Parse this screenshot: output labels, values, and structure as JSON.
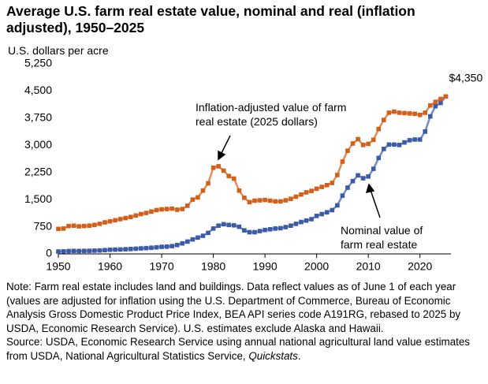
{
  "chart_data": {
    "type": "line",
    "title": "Average U.S. farm real estate value, nominal and real (inflation adjusted), 1950–2025",
    "y_label": "U.S. dollars per acre",
    "x": [
      1950,
      1951,
      1952,
      1953,
      1954,
      1955,
      1956,
      1957,
      1958,
      1959,
      1960,
      1961,
      1962,
      1963,
      1964,
      1965,
      1966,
      1967,
      1968,
      1969,
      1970,
      1971,
      1972,
      1973,
      1974,
      1975,
      1976,
      1977,
      1978,
      1979,
      1980,
      1981,
      1982,
      1983,
      1984,
      1985,
      1986,
      1987,
      1988,
      1989,
      1990,
      1991,
      1992,
      1993,
      1994,
      1995,
      1996,
      1997,
      1998,
      1999,
      2000,
      2001,
      2002,
      2003,
      2004,
      2005,
      2006,
      2007,
      2008,
      2009,
      2010,
      2011,
      2012,
      2013,
      2014,
      2015,
      2016,
      2017,
      2018,
      2019,
      2020,
      2021,
      2022,
      2023,
      2024,
      2025
    ],
    "series": [
      {
        "name": "Nominal value of farm real estate",
        "color": "#3b5ba8",
        "values": [
          65,
          70,
          78,
          82,
          80,
          82,
          85,
          90,
          95,
          105,
          115,
          118,
          122,
          128,
          135,
          143,
          152,
          160,
          170,
          180,
          195,
          200,
          215,
          245,
          290,
          340,
          400,
          450,
          500,
          580,
          700,
          780,
          820,
          800,
          790,
          750,
          650,
          600,
          600,
          630,
          660,
          680,
          700,
          710,
          740,
          780,
          830,
          880,
          920,
          960,
          1050,
          1100,
          1150,
          1210,
          1340,
          1610,
          1830,
          2010,
          2170,
          2090,
          2140,
          2350,
          2650,
          2900,
          3020,
          3020,
          3010,
          3080,
          3140,
          3160,
          3160,
          3380,
          3800,
          4080,
          4170,
          4350
        ],
        "value_labels": [
          null,
          null,
          null,
          null,
          null,
          null,
          null,
          null,
          null,
          null,
          null,
          null,
          null,
          null,
          null,
          null,
          null,
          null,
          null,
          null,
          null,
          null,
          null,
          null,
          null,
          null,
          null,
          null,
          null,
          null,
          null,
          null,
          null,
          null,
          null,
          null,
          null,
          null,
          null,
          null,
          null,
          null,
          null,
          null,
          null,
          null,
          null,
          null,
          null,
          null,
          null,
          null,
          null,
          null,
          null,
          null,
          null,
          null,
          null,
          null,
          null,
          null,
          null,
          null,
          null,
          null,
          null,
          null,
          null,
          null,
          null,
          null,
          null,
          null,
          null,
          "$4,350"
        ]
      },
      {
        "name": "Inflation-adjusted value of farm real estate (2025 dollars)",
        "color": "#d2601a",
        "values": [
          690,
          700,
          770,
          780,
          760,
          770,
          780,
          800,
          830,
          870,
          900,
          930,
          960,
          990,
          1020,
          1060,
          1100,
          1130,
          1170,
          1210,
          1230,
          1240,
          1250,
          1220,
          1240,
          1330,
          1500,
          1560,
          1750,
          1950,
          2380,
          2420,
          2300,
          2150,
          2080,
          1750,
          1550,
          1430,
          1470,
          1480,
          1490,
          1470,
          1450,
          1450,
          1480,
          1520,
          1580,
          1640,
          1700,
          1740,
          1800,
          1850,
          1900,
          1960,
          2180,
          2550,
          2850,
          3050,
          3170,
          3010,
          3040,
          3150,
          3450,
          3700,
          3900,
          3930,
          3900,
          3890,
          3880,
          3870,
          3840,
          3900,
          4100,
          4200,
          4280,
          4350
        ]
      }
    ],
    "xlim": [
      1950,
      2026
    ],
    "xticks": [
      1950,
      1960,
      1970,
      1980,
      1990,
      2000,
      2010,
      2020
    ],
    "ylim": [
      0,
      5250
    ],
    "yticks": [
      0,
      750,
      {
        "value": 1500,
        "label": "1,500"
      },
      {
        "value": 2250,
        "label": "2,250"
      },
      {
        "value": 3000,
        "label": "3,000"
      },
      {
        "value": 3750,
        "label": "3,750"
      },
      {
        "value": 4500,
        "label": "4,500"
      },
      {
        "value": 5250,
        "label": "5,250"
      }
    ],
    "grid": false,
    "note": "Note: Farm real estate includes land and buildings. Data reflect values as of June 1 of each year (values are adjusted for inflation using the U.S. Department of Commerce, Bureau of Economic Analysis Gross Domestic Product Price Index, BEA API series code A191RG, rebased to 2025 by USDA, Economic Research Service). U.S. estimates exclude Alaska and Hawaii.",
    "source": [
      "Source: USDA, Economic Research Service using annual national agricultural land value estimates from USDA, National Agricultural Statistics Service, ",
      "Quickstats",
      "."
    ]
  }
}
